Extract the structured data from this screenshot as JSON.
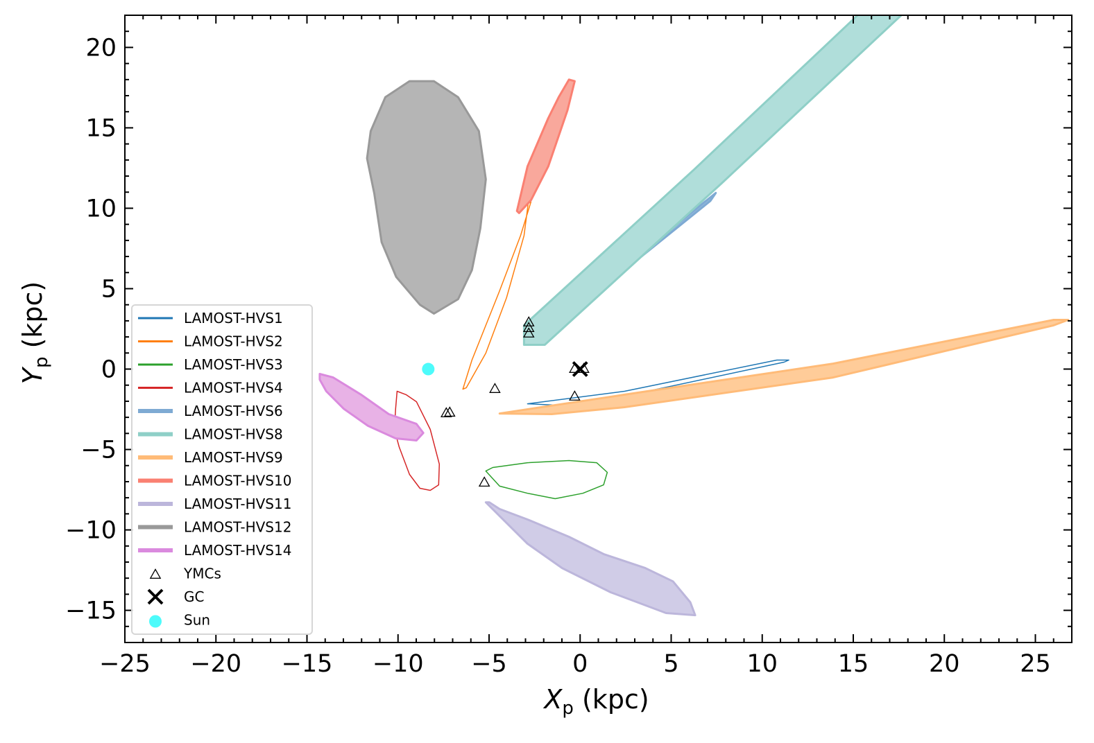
{
  "chart_data": {
    "type": "area",
    "title": "",
    "xlabel": "X_p (kpc)",
    "xlabel_main": "X",
    "xlabel_sub": "p",
    "xlabel_unit": " (kpc)",
    "ylabel": "Y_p (kpc)",
    "ylabel_main": "Y",
    "ylabel_sub": "p",
    "ylabel_unit": " (kpc)",
    "xlim": [
      -25,
      27
    ],
    "ylim": [
      -17,
      22
    ],
    "xticks": [
      -25,
      -20,
      -15,
      -10,
      -5,
      0,
      5,
      10,
      15,
      20,
      25
    ],
    "xtick_labels": [
      "−25",
      "−20",
      "−15",
      "−10",
      "−5",
      "0",
      "5",
      "10",
      "15",
      "20",
      "25"
    ],
    "yticks": [
      -15,
      -10,
      -5,
      0,
      5,
      10,
      15,
      20
    ],
    "ytick_labels": [
      "−15",
      "−10",
      "−5",
      "0",
      "5",
      "10",
      "15",
      "20"
    ],
    "minor_tick_step": 1,
    "grid": false,
    "legend_position": "lower-left",
    "series": [
      {
        "name": "LAMOST-HVS1",
        "color": "#1f77b4",
        "style": "outline",
        "polygon": [
          [
            -2.89,
            -2.16
          ],
          [
            2.44,
            -1.38
          ],
          [
            10.8,
            0.56
          ],
          [
            11.46,
            0.56
          ],
          [
            11.2,
            0.43
          ],
          [
            2.44,
            -1.68
          ],
          [
            -1.37,
            -2.24
          ]
        ]
      },
      {
        "name": "LAMOST-HVS2",
        "color": "#ff7f0e",
        "style": "outline",
        "polygon": [
          [
            -6.44,
            -1.25
          ],
          [
            -5.94,
            0.56
          ],
          [
            -4.42,
            4.87
          ],
          [
            -3.27,
            8.3
          ],
          [
            -2.7,
            10.4
          ],
          [
            -2.85,
            10.3
          ],
          [
            -3.08,
            8.3
          ],
          [
            -4.04,
            4.44
          ],
          [
            -5.18,
            0.99
          ],
          [
            -6.25,
            -1.16
          ]
        ]
      },
      {
        "name": "LAMOST-HVS3",
        "color": "#2ca02c",
        "style": "outline",
        "polygon": [
          [
            -5.18,
            -6.34
          ],
          [
            -4.42,
            -7.28
          ],
          [
            -2.89,
            -7.72
          ],
          [
            -1.37,
            -8.06
          ],
          [
            0.15,
            -7.72
          ],
          [
            1.29,
            -7.2
          ],
          [
            1.49,
            -6.42
          ],
          [
            0.91,
            -5.82
          ],
          [
            -0.61,
            -5.69
          ],
          [
            -2.89,
            -5.82
          ],
          [
            -4.8,
            -6.12
          ]
        ]
      },
      {
        "name": "LAMOST-HVS4",
        "color": "#d62728",
        "style": "outline",
        "polygon": [
          [
            -10.05,
            -1.38
          ],
          [
            -9.56,
            -1.59
          ],
          [
            -8.99,
            -2.03
          ],
          [
            -8.23,
            -3.75
          ],
          [
            -7.73,
            -5.91
          ],
          [
            -7.77,
            -7.2
          ],
          [
            -8.23,
            -7.54
          ],
          [
            -8.8,
            -7.41
          ],
          [
            -9.37,
            -6.55
          ],
          [
            -9.94,
            -4.83
          ],
          [
            -10.2,
            -3.75
          ],
          [
            -10.13,
            -2.46
          ]
        ]
      },
      {
        "name": "LAMOST-HVS6",
        "color": "#7eaad3",
        "style": "filled",
        "polygon": [
          [
            -1.4,
            2.2
          ],
          [
            3.0,
            6.9
          ],
          [
            7.45,
            10.95
          ],
          [
            7.15,
            10.45
          ],
          [
            2.6,
            6.3
          ],
          [
            -1.2,
            2.75
          ]
        ]
      },
      {
        "name": "LAMOST-HVS8",
        "color": "#8fcfc7",
        "fill": "#b0deda",
        "style": "filled",
        "polygon": [
          [
            -3.08,
            2.72
          ],
          [
            6.25,
            12.4
          ],
          [
            15.8,
            22.6
          ],
          [
            18.2,
            22.6
          ],
          [
            7.77,
            11.55
          ],
          [
            -1.94,
            1.51
          ],
          [
            -3.08,
            1.51
          ]
        ]
      },
      {
        "name": "LAMOST-HVS9",
        "color": "#ffbb78",
        "fill": "#ffcc99",
        "style": "filled",
        "polygon": [
          [
            -4.42,
            -2.76
          ],
          [
            2.44,
            -1.59
          ],
          [
            13.9,
            0.34
          ],
          [
            26.0,
            3.06
          ],
          [
            26.8,
            3.06
          ],
          [
            26.0,
            2.72
          ],
          [
            13.9,
            -0.52
          ],
          [
            2.44,
            -2.37
          ],
          [
            -1.56,
            -2.8
          ]
        ]
      },
      {
        "name": "LAMOST-HVS10",
        "color": "#fa8072",
        "fill": "#f9a89c",
        "style": "filled",
        "polygon": [
          [
            -3.47,
            9.83
          ],
          [
            -2.89,
            12.6
          ],
          [
            -1.75,
            15.6
          ],
          [
            -1.18,
            16.9
          ],
          [
            -0.61,
            18.0
          ],
          [
            -0.3,
            17.9
          ],
          [
            -0.69,
            16.1
          ],
          [
            -1.75,
            12.6
          ],
          [
            -2.7,
            10.5
          ],
          [
            -3.35,
            9.7
          ]
        ]
      },
      {
        "name": "LAMOST-HVS11",
        "color": "#bcb6db",
        "fill": "#d0cce7",
        "style": "filled",
        "polygon": [
          [
            -5.18,
            -8.28
          ],
          [
            -4.42,
            -9.14
          ],
          [
            -2.89,
            -10.86
          ],
          [
            -0.99,
            -12.37
          ],
          [
            1.68,
            -13.88
          ],
          [
            4.72,
            -15.17
          ],
          [
            6.32,
            -15.3
          ],
          [
            6.05,
            -14.5
          ],
          [
            5.1,
            -13.2
          ],
          [
            3.58,
            -12.37
          ],
          [
            1.29,
            -11.5
          ],
          [
            -0.61,
            -10.43
          ],
          [
            -2.89,
            -9.35
          ],
          [
            -4.42,
            -8.7
          ],
          [
            -4.99,
            -8.28
          ]
        ]
      },
      {
        "name": "LAMOST-HVS12",
        "color": "#999999",
        "fill": "#b5b5b5",
        "style": "filled",
        "polygon": [
          [
            -10.7,
            16.9
          ],
          [
            -9.37,
            17.9
          ],
          [
            -8.03,
            17.9
          ],
          [
            -6.7,
            16.9
          ],
          [
            -5.56,
            14.8
          ],
          [
            -5.18,
            11.8
          ],
          [
            -5.48,
            8.75
          ],
          [
            -5.94,
            6.16
          ],
          [
            -6.7,
            4.35
          ],
          [
            -8.03,
            3.45
          ],
          [
            -8.8,
            4.0
          ],
          [
            -10.1,
            5.73
          ],
          [
            -10.9,
            7.89
          ],
          [
            -11.3,
            10.9
          ],
          [
            -11.7,
            13.1
          ],
          [
            -11.5,
            14.8
          ]
        ]
      },
      {
        "name": "LAMOST-HVS14",
        "color": "#da8ade",
        "fill": "#e8b2e6",
        "style": "filled",
        "polygon": [
          [
            -14.3,
            -0.3
          ],
          [
            -13.56,
            -0.52
          ],
          [
            -12.03,
            -1.59
          ],
          [
            -10.51,
            -2.8
          ],
          [
            -8.99,
            -3.41
          ],
          [
            -8.61,
            -3.97
          ],
          [
            -8.99,
            -4.44
          ],
          [
            -10.13,
            -4.31
          ],
          [
            -11.65,
            -3.53
          ],
          [
            -12.99,
            -2.46
          ],
          [
            -13.94,
            -1.38
          ],
          [
            -14.3,
            -0.65
          ]
        ]
      }
    ],
    "markers": {
      "ymcs": {
        "name": "YMCs",
        "points": [
          [
            -2.82,
            2.89
          ],
          [
            -2.82,
            2.54
          ],
          [
            -2.82,
            2.2
          ],
          [
            -4.68,
            -1.25
          ],
          [
            -7.35,
            -2.76
          ],
          [
            -7.16,
            -2.72
          ],
          [
            -0.3,
            -1.72
          ],
          [
            -5.26,
            -7.07
          ],
          [
            -0.3,
            0.0
          ],
          [
            0.2,
            0.0
          ]
        ]
      },
      "gc": {
        "name": "GC",
        "point": [
          0,
          0
        ]
      },
      "sun": {
        "name": "Sun",
        "point": [
          -8.34,
          0
        ],
        "color": "#4dfbfb"
      }
    }
  }
}
